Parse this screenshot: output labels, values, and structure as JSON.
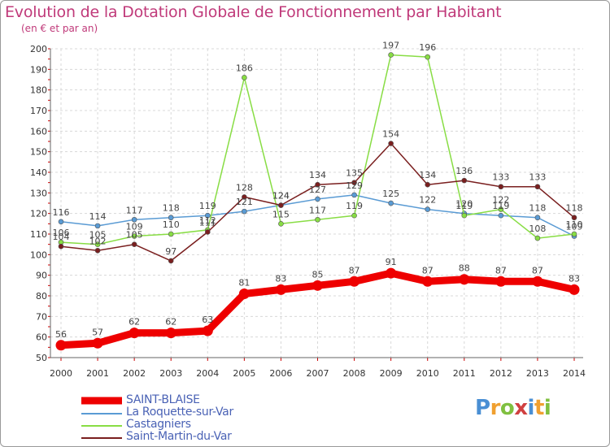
{
  "title": "Evolution de la Dotation Globale de Fonctionnement par Habitant",
  "subtitle": "(en € et par an)",
  "logo": {
    "text": "Proxiti",
    "letters": [
      "P",
      "r",
      "o",
      "x",
      "i",
      "t",
      "i"
    ],
    "colors": [
      "#4a8fd4",
      "#f0a030",
      "#80c040",
      "#d04040",
      "#4a8fd4",
      "#f0a030",
      "#80c040"
    ]
  },
  "chart_data": {
    "type": "line",
    "x": [
      "2000",
      "2001",
      "2002",
      "2003",
      "2004",
      "2005",
      "2006",
      "2007",
      "2008",
      "2009",
      "2010",
      "2011",
      "2012",
      "2013",
      "2014"
    ],
    "ylim": [
      50,
      200
    ],
    "yticks": [
      "50",
      "60",
      "70",
      "80",
      "90",
      "100",
      "110",
      "120",
      "130",
      "140",
      "150",
      "160",
      "170",
      "180",
      "190",
      "200"
    ],
    "grid": true,
    "legend_position": "bottom-left",
    "series": [
      {
        "name": "SAINT-BLAISE",
        "color": "#ee0000",
        "values": [
          56,
          57,
          62,
          62,
          63,
          81,
          83,
          85,
          87,
          91,
          87,
          88,
          87,
          87,
          83
        ],
        "labels": [
          "56",
          "57",
          "62",
          "62",
          "63",
          "81",
          "83",
          "85",
          "87",
          "91",
          "87",
          "88",
          "87",
          "87",
          "83"
        ]
      },
      {
        "name": "La Roquette-sur-Var",
        "color": "#5a9bd4",
        "values": [
          116,
          114,
          117,
          118,
          119,
          121,
          124,
          127,
          129,
          125,
          122,
          120,
          119,
          118,
          109
        ],
        "labels": [
          "116",
          "114",
          "117",
          "118",
          "119",
          "121",
          "124",
          "127",
          "129",
          "125",
          "122",
          "120",
          "119",
          "118",
          "109"
        ]
      },
      {
        "name": "Castagniers",
        "color": "#88dd44",
        "values": [
          106,
          105,
          109,
          110,
          112,
          186,
          115,
          117,
          119,
          197,
          196,
          119,
          122,
          108,
          110
        ],
        "labels": [
          "106",
          "105",
          "109",
          "110",
          "112",
          "186",
          "115",
          "117",
          "119",
          "197",
          "196",
          "119",
          "122",
          "108",
          "110"
        ]
      },
      {
        "name": "Saint-Martin-du-Var",
        "color": "#7a1f1f",
        "values": [
          104,
          102,
          105,
          97,
          111,
          128,
          124,
          134,
          135,
          154,
          134,
          136,
          133,
          133,
          118
        ],
        "labels": [
          "104",
          "102",
          "105",
          "97",
          "111",
          "128",
          "124",
          "134",
          "135",
          "154",
          "134",
          "136",
          "133",
          "133",
          "118"
        ]
      }
    ]
  }
}
